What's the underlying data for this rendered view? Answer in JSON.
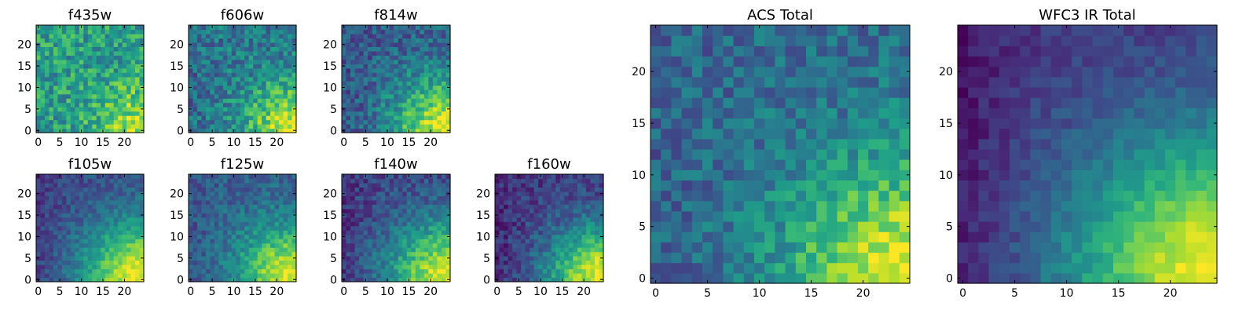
{
  "figure": {
    "colormap_name": "viridis",
    "colors": [
      "#440154",
      "#482878",
      "#3e4a89",
      "#31688e",
      "#26828e",
      "#1f9e89",
      "#35b779",
      "#6ece58",
      "#b5de2b",
      "#fde725"
    ]
  },
  "chart_data": [
    {
      "id": "f435w",
      "type": "heatmap",
      "title": "f435w",
      "grid": false,
      "xlim": [
        0,
        24
      ],
      "ylim": [
        0,
        24
      ],
      "xticks": [
        "0",
        "5",
        "10",
        "15",
        "20"
      ],
      "yticks": [
        "0",
        "5",
        "10",
        "15",
        "20"
      ],
      "rows": 25,
      "cols": 25,
      "value_range": [
        0,
        1
      ],
      "trend": {
        "base": 0.55,
        "noise": 0.2,
        "corner_peak": 0.35,
        "corner_x": 24,
        "corner_y": 0,
        "radius": 7,
        "left_dark": 0.0
      },
      "seed": 11
    },
    {
      "id": "f606w",
      "type": "heatmap",
      "title": "f606w",
      "grid": false,
      "xlim": [
        0,
        24
      ],
      "ylim": [
        0,
        24
      ],
      "xticks": [
        "0",
        "5",
        "10",
        "15",
        "20"
      ],
      "yticks": [
        "0",
        "5",
        "10",
        "15",
        "20"
      ],
      "rows": 25,
      "cols": 25,
      "value_range": [
        0,
        1
      ],
      "trend": {
        "base": 0.4,
        "noise": 0.18,
        "corner_peak": 0.55,
        "corner_x": 24,
        "corner_y": 0,
        "radius": 8,
        "left_dark": 0.05
      },
      "seed": 23
    },
    {
      "id": "f814w",
      "type": "heatmap",
      "title": "f814w",
      "grid": false,
      "xlim": [
        0,
        24
      ],
      "ylim": [
        0,
        24
      ],
      "xticks": [
        "0",
        "5",
        "10",
        "15",
        "20"
      ],
      "yticks": [
        "0",
        "5",
        "10",
        "15",
        "20"
      ],
      "rows": 25,
      "cols": 25,
      "value_range": [
        0,
        1
      ],
      "trend": {
        "base": 0.3,
        "noise": 0.16,
        "corner_peak": 0.65,
        "corner_x": 24,
        "corner_y": 0,
        "radius": 9,
        "left_dark": 0.05
      },
      "seed": 37
    },
    {
      "id": "f105w",
      "type": "heatmap",
      "title": "f105w",
      "grid": false,
      "xlim": [
        0,
        24
      ],
      "ylim": [
        0,
        24
      ],
      "xticks": [
        "0",
        "5",
        "10",
        "15",
        "20"
      ],
      "yticks": [
        "0",
        "5",
        "10",
        "15",
        "20"
      ],
      "rows": 25,
      "cols": 25,
      "value_range": [
        0,
        1
      ],
      "trend": {
        "base": 0.22,
        "noise": 0.1,
        "corner_peak": 0.75,
        "corner_x": 24,
        "corner_y": 0,
        "radius": 10,
        "left_dark": 0.06
      },
      "seed": 41
    },
    {
      "id": "f125w",
      "type": "heatmap",
      "title": "f125w",
      "grid": false,
      "xlim": [
        0,
        24
      ],
      "ylim": [
        0,
        24
      ],
      "xticks": [
        "0",
        "5",
        "10",
        "15",
        "20"
      ],
      "yticks": [
        "0",
        "5",
        "10",
        "15",
        "20"
      ],
      "rows": 25,
      "cols": 25,
      "value_range": [
        0,
        1
      ],
      "trend": {
        "base": 0.3,
        "noise": 0.12,
        "corner_peak": 0.68,
        "corner_x": 24,
        "corner_y": 0,
        "radius": 9,
        "left_dark": 0.04
      },
      "seed": 53
    },
    {
      "id": "f140w",
      "type": "heatmap",
      "title": "f140w",
      "grid": false,
      "xlim": [
        0,
        24
      ],
      "ylim": [
        0,
        24
      ],
      "xticks": [
        "0",
        "5",
        "10",
        "15",
        "20"
      ],
      "yticks": [
        "0",
        "5",
        "10",
        "15",
        "20"
      ],
      "rows": 25,
      "cols": 25,
      "value_range": [
        0,
        1
      ],
      "trend": {
        "base": 0.2,
        "noise": 0.12,
        "corner_peak": 0.75,
        "corner_x": 24,
        "corner_y": 0,
        "radius": 10,
        "left_dark": 0.06
      },
      "seed": 67
    },
    {
      "id": "f160w",
      "type": "heatmap",
      "title": "f160w",
      "grid": false,
      "xlim": [
        0,
        24
      ],
      "ylim": [
        0,
        24
      ],
      "xticks": [
        "0",
        "5",
        "10",
        "15",
        "20"
      ],
      "yticks": [
        "0",
        "5",
        "10",
        "15",
        "20"
      ],
      "rows": 25,
      "cols": 25,
      "value_range": [
        0,
        1
      ],
      "trend": {
        "base": 0.17,
        "noise": 0.12,
        "corner_peak": 0.8,
        "corner_x": 24,
        "corner_y": 0,
        "radius": 9,
        "left_dark": 0.05
      },
      "seed": 79
    },
    {
      "id": "acs_total",
      "type": "heatmap",
      "title": "ACS Total",
      "grid": false,
      "xlim": [
        0,
        24
      ],
      "ylim": [
        0,
        24
      ],
      "xticks": [
        "0",
        "5",
        "10",
        "15",
        "20"
      ],
      "yticks": [
        "0",
        "5",
        "10",
        "15",
        "20"
      ],
      "rows": 25,
      "cols": 25,
      "value_range": [
        0,
        1
      ],
      "trend": {
        "base": 0.35,
        "noise": 0.14,
        "corner_peak": 0.62,
        "corner_x": 24,
        "corner_y": 0,
        "radius": 8,
        "left_dark": 0.04
      },
      "seed": 97
    },
    {
      "id": "wfc3_ir_total",
      "type": "heatmap",
      "title": "WFC3 IR Total",
      "grid": false,
      "xlim": [
        0,
        24
      ],
      "ylim": [
        0,
        24
      ],
      "xticks": [
        "0",
        "5",
        "10",
        "15",
        "20"
      ],
      "yticks": [
        "0",
        "5",
        "10",
        "15",
        "20"
      ],
      "rows": 25,
      "cols": 25,
      "value_range": [
        0,
        1
      ],
      "trend": {
        "base": 0.16,
        "noise": 0.07,
        "corner_peak": 0.82,
        "corner_x": 24,
        "corner_y": 0,
        "radius": 10,
        "left_dark": 0.1
      },
      "seed": 113
    }
  ]
}
